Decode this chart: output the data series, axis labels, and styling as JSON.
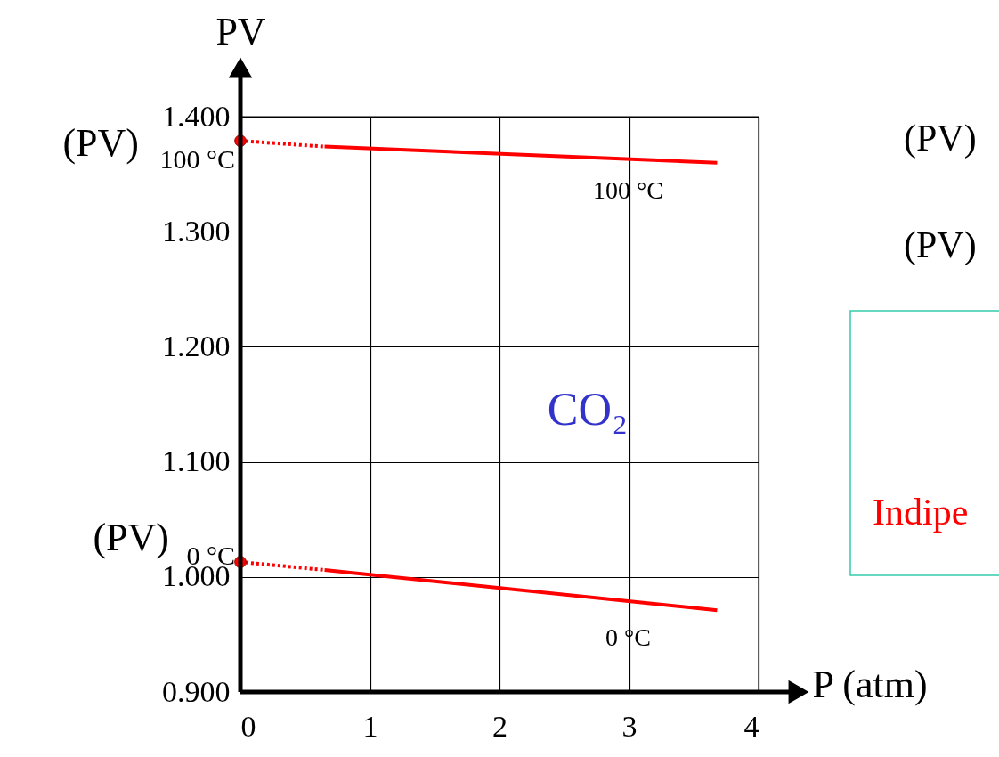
{
  "chart_data": {
    "type": "line",
    "xlabel": "P (atm)",
    "ylabel": "PV",
    "xlim": [
      0,
      4
    ],
    "xticks": [
      0,
      1,
      2,
      3,
      4
    ],
    "ylim": [
      0.9,
      1.4
    ],
    "yticks": [
      {
        "value": 0.9,
        "label": "0.900"
      },
      {
        "value": 1.0,
        "label": "1.000"
      },
      {
        "value": 1.1,
        "label": "1.100"
      },
      {
        "value": 1.2,
        "label": "1.200"
      },
      {
        "value": 1.3,
        "label": "1.300"
      },
      {
        "value": 1.4,
        "label": "1.400"
      }
    ],
    "grid": true,
    "series": [
      {
        "name": "100 °C",
        "color": "#ff0000",
        "x": [
          0.65,
          3.68
        ],
        "values": [
          1.374,
          1.36
        ]
      },
      {
        "name": "0 °C",
        "color": "#ff0000",
        "x": [
          0.65,
          3.68
        ],
        "values": [
          1.006,
          0.971
        ]
      },
      {
        "color": "#ff0000",
        "line_style": "dotted",
        "x": [
          0,
          0.65
        ],
        "values": [
          1.379,
          1.374
        ]
      },
      {
        "color": "#ff0000",
        "line_style": "dotted",
        "x": [
          0,
          0.65
        ],
        "values": [
          1.013,
          1.006
        ]
      },
      {
        "type": "scatter",
        "marker": "circle",
        "color": "#ff0000",
        "x": [
          0,
          0
        ],
        "values": [
          1.379,
          1.013
        ]
      }
    ],
    "annotations": [
      {
        "text": "(PV)$_{100 °C}$",
        "x": 0,
        "y": 1.379
      },
      {
        "text": "(PV)$_{0 °C}$",
        "x": 0,
        "y": 1.013
      },
      "CO₂",
      "(PV)",
      "(PV)",
      "Indipe"
    ]
  }
}
